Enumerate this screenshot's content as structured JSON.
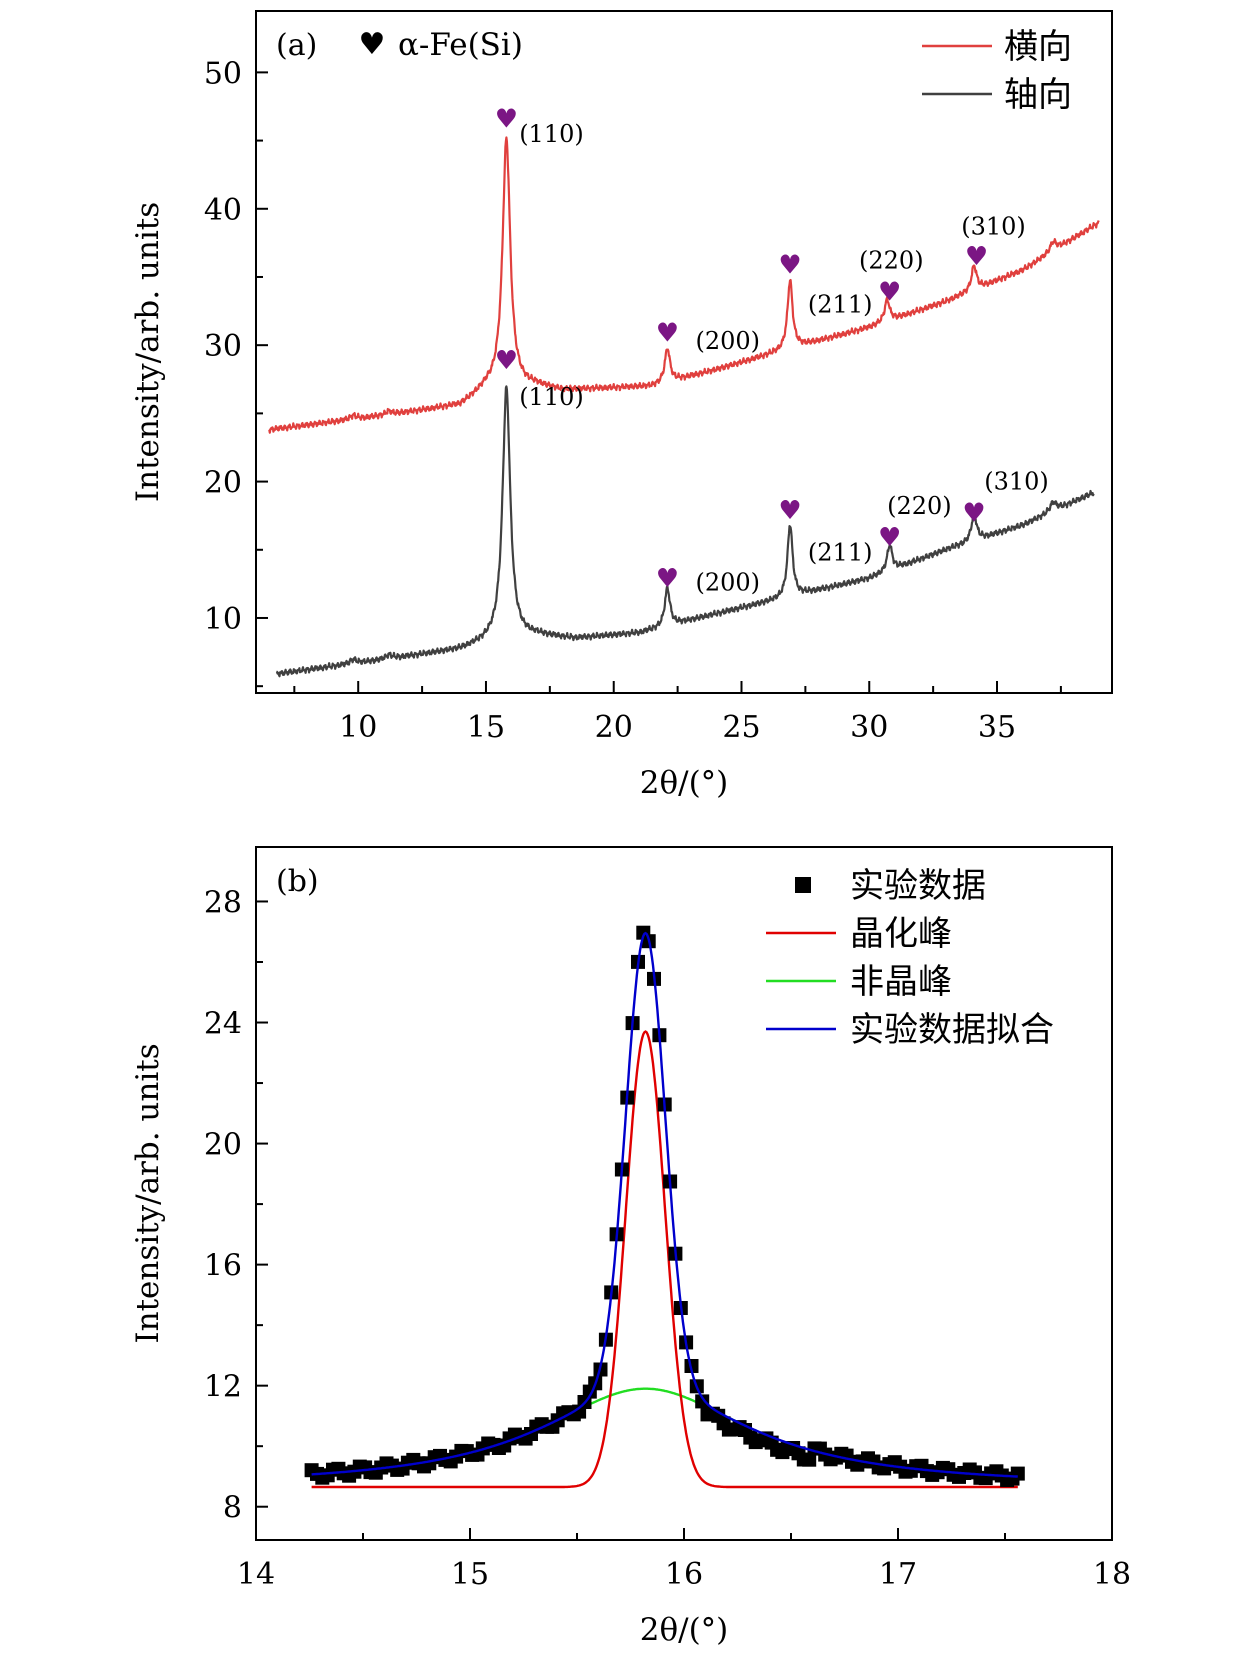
{
  "chart_data": [
    {
      "panel": "(a)",
      "type": "line",
      "xlabel": "2θ/(°)",
      "ylabel": "Intensity/arb. units",
      "xlim": [
        6.0,
        39.5
      ],
      "ylim": [
        4.5,
        54.5
      ],
      "xticks": [
        10,
        15,
        20,
        25,
        30,
        35
      ],
      "yticks": [
        10,
        20,
        30,
        40,
        50
      ],
      "x_minor_step": 2.5,
      "y_minor_step": 5,
      "phase_marker": {
        "symbol": "♥",
        "label": "α-Fe(Si)"
      },
      "marker_color": "#7b1684",
      "series": [
        {
          "name": "横向",
          "color": "#e0403e",
          "baseline": [
            [
              6.5,
              23.8
            ],
            [
              10,
              24.6
            ],
            [
              14,
              25.6
            ],
            [
              15,
              26.8
            ],
            [
              17,
              27.0
            ],
            [
              18,
              26.7
            ],
            [
              21.5,
              27.0
            ],
            [
              24,
              28.2
            ],
            [
              27,
              29.8
            ],
            [
              30,
              31.3
            ],
            [
              33,
              33.2
            ],
            [
              36,
              35.5
            ],
            [
              39,
              39.0
            ]
          ],
          "peaks": [
            {
              "center": 15.8,
              "height": 18.3,
              "width": 0.18,
              "hkl": "(110)"
            },
            {
              "center": 22.1,
              "height": 2.5,
              "width": 0.12,
              "hkl": "(200)"
            },
            {
              "center": 26.9,
              "height": 5.0,
              "width": 0.12,
              "hkl": "(211)"
            },
            {
              "center": 30.7,
              "height": 1.6,
              "width": 0.12,
              "hkl": "(220)"
            },
            {
              "center": 34.1,
              "height": 1.8,
              "width": 0.12,
              "hkl": "(310)"
            },
            {
              "center": 37.2,
              "height": 0.7,
              "width": 0.15,
              "hkl": ""
            },
            {
              "center": 9.8,
              "height": 0.3,
              "width": 0.15,
              "hkl": ""
            },
            {
              "center": 11.2,
              "height": 0.25,
              "width": 0.15,
              "hkl": ""
            }
          ]
        },
        {
          "name": "轴向",
          "color": "#404040",
          "baseline": [
            [
              6.8,
              5.9
            ],
            [
              10,
              6.7
            ],
            [
              14,
              7.7
            ],
            [
              15,
              8.2
            ],
            [
              17,
              8.7
            ],
            [
              18.5,
              8.5
            ],
            [
              21,
              8.9
            ],
            [
              24,
              10.3
            ],
            [
              27,
              11.6
            ],
            [
              30,
              12.9
            ],
            [
              33,
              15.0
            ],
            [
              36,
              16.8
            ],
            [
              38.8,
              19.2
            ]
          ],
          "peaks": [
            {
              "center": 15.8,
              "height": 18.5,
              "width": 0.18,
              "hkl": "(110)"
            },
            {
              "center": 22.1,
              "height": 2.8,
              "width": 0.12,
              "hkl": "(200)"
            },
            {
              "center": 26.9,
              "height": 5.3,
              "width": 0.12,
              "hkl": "(211)"
            },
            {
              "center": 30.8,
              "height": 1.9,
              "width": 0.12,
              "hkl": "(220)"
            },
            {
              "center": 34.1,
              "height": 2.0,
              "width": 0.12,
              "hkl": "(310)"
            },
            {
              "center": 37.2,
              "height": 0.7,
              "width": 0.15,
              "hkl": ""
            },
            {
              "center": 9.8,
              "height": 0.3,
              "width": 0.15,
              "hkl": ""
            },
            {
              "center": 11.2,
              "height": 0.3,
              "width": 0.15,
              "hkl": ""
            }
          ]
        }
      ],
      "annotations": [
        {
          "series": "横向",
          "label": "(110)",
          "x": 15.8,
          "marker_y": 46.7,
          "label_x": 16.3,
          "label_y": 45.5
        },
        {
          "series": "横向",
          "label": "(200)",
          "x": 22.1,
          "marker_y": 31.0,
          "label_x": 23.2,
          "label_y": 30.3
        },
        {
          "series": "横向",
          "label": "(211)",
          "x": 26.9,
          "marker_y": 36.0,
          "label_x": 27.6,
          "label_y": 33.0
        },
        {
          "series": "横向",
          "label": "(220)",
          "x": 30.8,
          "marker_y": 34.0,
          "label_x": 29.6,
          "label_y": 36.2
        },
        {
          "series": "横向",
          "label": "(310)",
          "x": 34.2,
          "marker_y": 36.6,
          "label_x": 33.6,
          "label_y": 38.7
        },
        {
          "series": "轴向",
          "label": "(110)",
          "x": 15.8,
          "marker_y": 29.0,
          "label_x": 16.3,
          "label_y": 26.2
        },
        {
          "series": "轴向",
          "label": "(200)",
          "x": 22.1,
          "marker_y": 13.0,
          "label_x": 23.2,
          "label_y": 12.6
        },
        {
          "series": "轴向",
          "label": "(211)",
          "x": 26.9,
          "marker_y": 18.0,
          "label_x": 27.6,
          "label_y": 14.8
        },
        {
          "series": "轴向",
          "label": "(220)",
          "x": 30.8,
          "marker_y": 16.0,
          "label_x": 30.7,
          "label_y": 18.2
        },
        {
          "series": "轴向",
          "label": "(310)",
          "x": 34.1,
          "marker_y": 17.8,
          "label_x": 34.5,
          "label_y": 20.0
        }
      ]
    },
    {
      "panel": "(b)",
      "type": "scatter+line",
      "xlabel": "2θ/(°)",
      "ylabel": "Intensity/arb. units",
      "xlim": [
        14,
        18
      ],
      "ylim": [
        6.9,
        29.8
      ],
      "xticks": [
        14,
        15,
        16,
        17,
        18
      ],
      "yticks": [
        8,
        12,
        16,
        20,
        24,
        28
      ],
      "x_minor_step": 0.5,
      "y_minor_step": 2,
      "fit": {
        "center": 15.82,
        "offset": 8.65,
        "crystalline": {
          "amplitude": 15.05,
          "sigma": 0.092
        },
        "amorphous": {
          "amplitude": 3.25,
          "gamma": 0.6
        }
      },
      "experimental_data": {
        "x_start": 14.26,
        "x_end": 17.56,
        "step": 0.025
      },
      "series": [
        {
          "name": "实验数据",
          "kind": "scatter",
          "color": "#000000"
        },
        {
          "name": "晶化峰",
          "kind": "line",
          "color": "#e00000"
        },
        {
          "name": "非晶峰",
          "kind": "line",
          "color": "#22dd22"
        },
        {
          "name": "实验数据拟合",
          "kind": "line",
          "color": "#0000cc"
        }
      ]
    }
  ]
}
